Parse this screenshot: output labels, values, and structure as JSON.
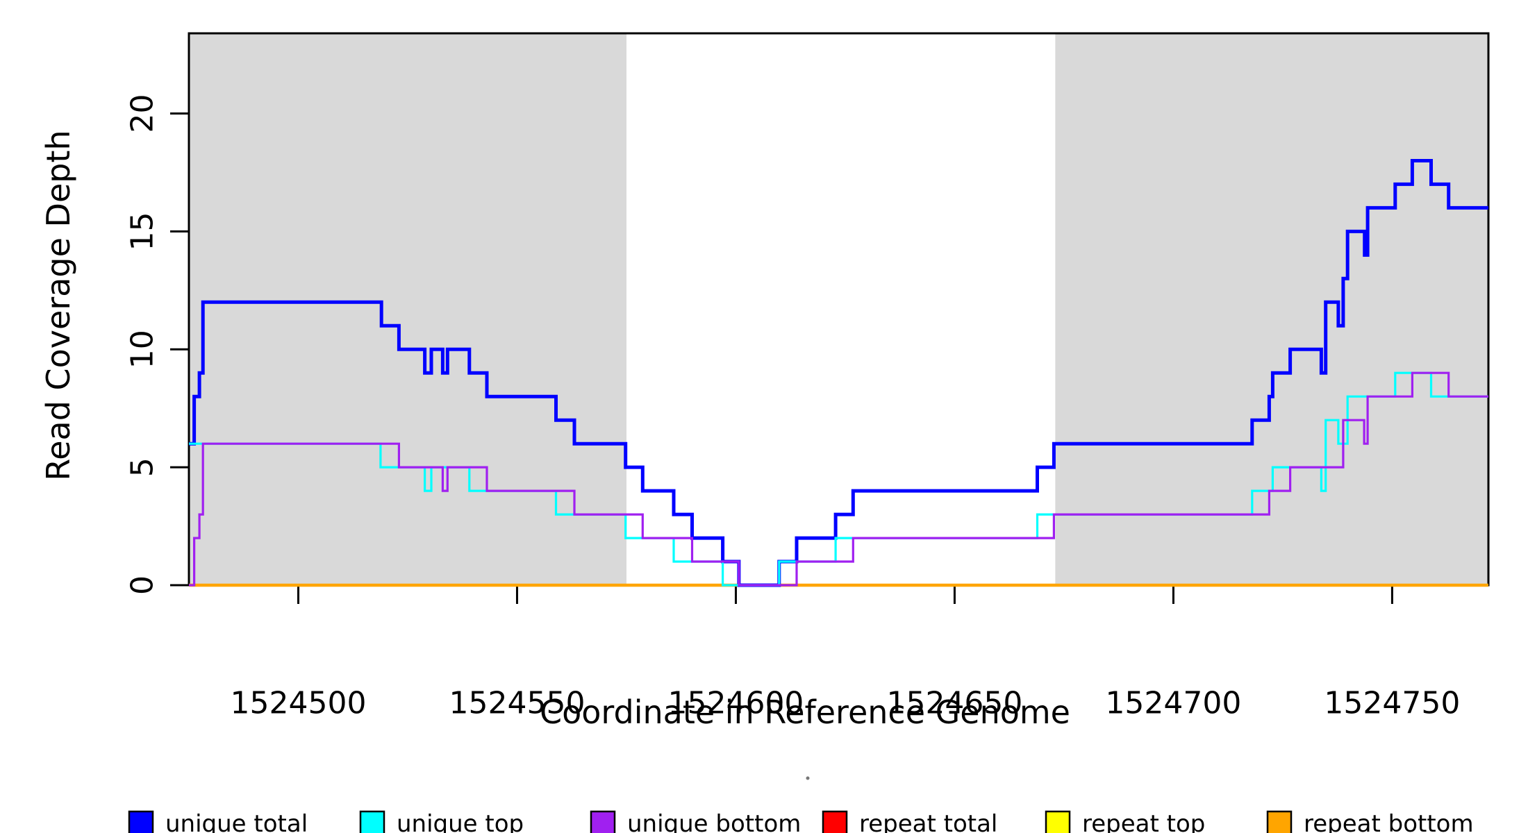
{
  "chart_data": {
    "type": "line",
    "subtype": "step-coverage-plot",
    "xlabel": "Coordinate in Reference Genome",
    "ylabel": "Read Coverage Depth",
    "x_range": [
      1524475,
      1524772
    ],
    "y_range": [
      0,
      23.4
    ],
    "x_ticks": [
      1524500,
      1524550,
      1524600,
      1524650,
      1524700,
      1524750
    ],
    "y_ticks": [
      0,
      5,
      10,
      15,
      20
    ],
    "grid": "off",
    "shaded_band_color": "#D9D9D9",
    "shaded_regions": [
      {
        "x0": 1524475,
        "x1": 1524575
      },
      {
        "x0": 1524673,
        "x1": 1524772
      }
    ],
    "draw_order": [
      "repeat total",
      "repeat top",
      "repeat bottom",
      "unique total",
      "unique top",
      "unique bottom"
    ],
    "series": [
      {
        "name": "unique total",
        "color": "#0000FF",
        "points": [
          [
            1524475,
            6
          ],
          [
            1524476.2,
            8
          ],
          [
            1524477.4,
            9
          ],
          [
            1524478.2,
            12
          ],
          [
            1524519,
            11
          ],
          [
            1524523,
            10
          ],
          [
            1524528.9,
            9
          ],
          [
            1524530.4,
            10
          ],
          [
            1524533,
            9
          ],
          [
            1524534.1,
            10
          ],
          [
            1524539.1,
            9
          ],
          [
            1524543.1,
            8
          ],
          [
            1524558.9,
            7
          ],
          [
            1524563.1,
            6
          ],
          [
            1524574.8,
            5
          ],
          [
            1524578.7,
            4
          ],
          [
            1524585.8,
            3
          ],
          [
            1524590,
            2
          ],
          [
            1524597,
            1
          ],
          [
            1524600.7,
            0
          ],
          [
            1524609.9,
            1
          ],
          [
            1524613.9,
            2
          ],
          [
            1524622.8,
            3
          ],
          [
            1524626.8,
            4
          ],
          [
            1524668.9,
            5
          ],
          [
            1524672.7,
            6
          ],
          [
            1524718,
            7
          ],
          [
            1524721.9,
            8
          ],
          [
            1524722.7,
            9
          ],
          [
            1524726.7,
            10
          ],
          [
            1524733.8,
            9
          ],
          [
            1524734.8,
            12
          ],
          [
            1524737.7,
            11
          ],
          [
            1524738.8,
            13
          ],
          [
            1524739.8,
            15
          ],
          [
            1524743.7,
            14
          ],
          [
            1524744.4,
            16
          ],
          [
            1524750.7,
            17
          ],
          [
            1524754.6,
            18
          ],
          [
            1524758.9,
            17
          ],
          [
            1524762.9,
            16
          ]
        ]
      },
      {
        "name": "unique top",
        "color": "#00FFFF",
        "points": [
          [
            1524475,
            6
          ],
          [
            1524518.8,
            5
          ],
          [
            1524528.9,
            4
          ],
          [
            1524530.4,
            5
          ],
          [
            1524539.1,
            4
          ],
          [
            1524558.9,
            3
          ],
          [
            1524574.8,
            2
          ],
          [
            1524585.8,
            1
          ],
          [
            1524597,
            0
          ],
          [
            1524609.9,
            1
          ],
          [
            1524622.8,
            2
          ],
          [
            1524668.9,
            3
          ],
          [
            1524718,
            4
          ],
          [
            1524722.7,
            5
          ],
          [
            1524733.8,
            4
          ],
          [
            1524734.8,
            7
          ],
          [
            1524737.7,
            6
          ],
          [
            1524739.8,
            8
          ],
          [
            1524750.7,
            9
          ],
          [
            1524758.9,
            8
          ]
        ]
      },
      {
        "name": "unique bottom",
        "color": "#A020F0",
        "points": [
          [
            1524475,
            0
          ],
          [
            1524476.2,
            2
          ],
          [
            1524477.4,
            3
          ],
          [
            1524478.2,
            6
          ],
          [
            1524523,
            5
          ],
          [
            1524533,
            4
          ],
          [
            1524534.1,
            5
          ],
          [
            1524543.1,
            4
          ],
          [
            1524563.1,
            3
          ],
          [
            1524578.7,
            2
          ],
          [
            1524590,
            1
          ],
          [
            1524600.7,
            0
          ],
          [
            1524613.9,
            1
          ],
          [
            1524626.8,
            2
          ],
          [
            1524672.7,
            3
          ],
          [
            1524721.9,
            4
          ],
          [
            1524726.7,
            5
          ],
          [
            1524738.8,
            7
          ],
          [
            1524743.6,
            6
          ],
          [
            1524744.4,
            8
          ],
          [
            1524754.6,
            9
          ],
          [
            1524762.9,
            8
          ]
        ]
      },
      {
        "name": "repeat total",
        "color": "#FF0000",
        "points": [
          [
            1524475,
            0
          ]
        ]
      },
      {
        "name": "repeat top",
        "color": "#FFFF00",
        "points": [
          [
            1524475,
            0
          ]
        ]
      },
      {
        "name": "repeat bottom",
        "color": "#FFA500",
        "points": [
          [
            1524475,
            0
          ]
        ]
      }
    ],
    "legend": {
      "position": "bottom",
      "entries": [
        {
          "label": "unique total",
          "color": "#0000FF"
        },
        {
          "label": "unique top",
          "color": "#00FFFF"
        },
        {
          "label": "unique bottom",
          "color": "#A020F0"
        },
        {
          "label": "repeat total",
          "color": "#FF0000"
        },
        {
          "label": "repeat top",
          "color": "#FFFF00"
        },
        {
          "label": "repeat bottom",
          "color": "#FFA500"
        }
      ]
    }
  }
}
